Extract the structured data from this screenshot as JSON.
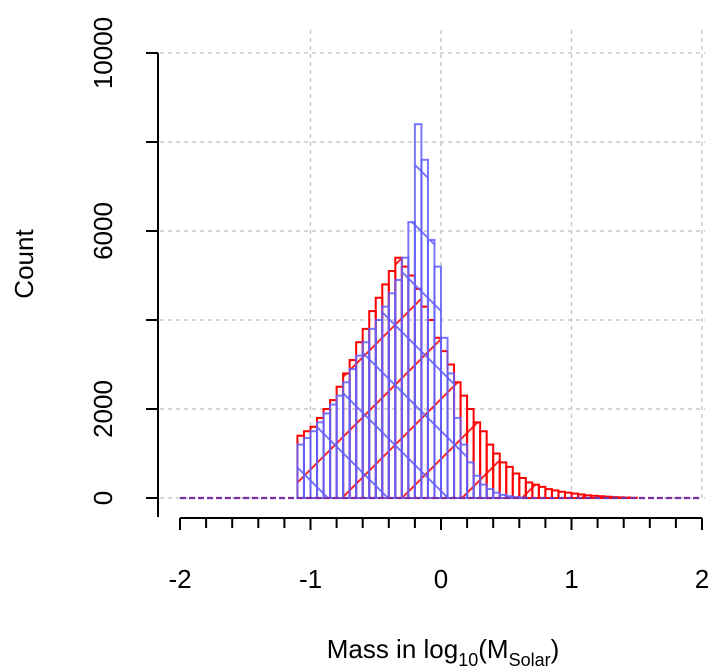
{
  "chart_data": {
    "type": "bar",
    "title": "",
    "xlabel_prefix": "Mass in log",
    "xlabel_sub1": "10",
    "xlabel_open": "(M",
    "xlabel_sub2": "Solar",
    "xlabel_close": ")",
    "ylabel": "Count",
    "xlim": [
      -2,
      2
    ],
    "ylim": [
      0,
      10000
    ],
    "grid": true,
    "xticks": [
      {
        "value": -2,
        "label": "-2"
      },
      {
        "value": -1,
        "label": "-1"
      },
      {
        "value": 0,
        "label": "0"
      },
      {
        "value": 1,
        "label": "1"
      },
      {
        "value": 2,
        "label": "2"
      }
    ],
    "yticks": [
      {
        "value": 0,
        "label": "0"
      },
      {
        "value": 2000,
        "label": "2000"
      },
      {
        "value": 6000,
        "label": "6000"
      },
      {
        "value": 10000,
        "label": "10000"
      }
    ],
    "bin_width": 0.05,
    "series": [
      {
        "color": "#ff0000",
        "bins": [
          {
            "x": -1.1,
            "y": 1400
          },
          {
            "x": -1.05,
            "y": 1500
          },
          {
            "x": -1.0,
            "y": 1600
          },
          {
            "x": -0.95,
            "y": 1800
          },
          {
            "x": -0.9,
            "y": 2000
          },
          {
            "x": -0.85,
            "y": 2200
          },
          {
            "x": -0.8,
            "y": 2500
          },
          {
            "x": -0.75,
            "y": 2800
          },
          {
            "x": -0.7,
            "y": 3100
          },
          {
            "x": -0.65,
            "y": 3500
          },
          {
            "x": -0.6,
            "y": 3800
          },
          {
            "x": -0.55,
            "y": 4200
          },
          {
            "x": -0.5,
            "y": 4500
          },
          {
            "x": -0.45,
            "y": 4800
          },
          {
            "x": -0.4,
            "y": 5100
          },
          {
            "x": -0.35,
            "y": 5400
          },
          {
            "x": -0.3,
            "y": 5200
          },
          {
            "x": -0.25,
            "y": 5000
          },
          {
            "x": -0.2,
            "y": 4700
          },
          {
            "x": -0.15,
            "y": 4300
          },
          {
            "x": -0.1,
            "y": 4000
          },
          {
            "x": -0.05,
            "y": 3600
          },
          {
            "x": 0.0,
            "y": 3300
          },
          {
            "x": 0.05,
            "y": 3000
          },
          {
            "x": 0.1,
            "y": 2600
          },
          {
            "x": 0.15,
            "y": 2300
          },
          {
            "x": 0.2,
            "y": 2000
          },
          {
            "x": 0.25,
            "y": 1700
          },
          {
            "x": 0.3,
            "y": 1500
          },
          {
            "x": 0.35,
            "y": 1200
          },
          {
            "x": 0.4,
            "y": 1000
          },
          {
            "x": 0.45,
            "y": 800
          },
          {
            "x": 0.5,
            "y": 700
          },
          {
            "x": 0.55,
            "y": 550
          },
          {
            "x": 0.6,
            "y": 450
          },
          {
            "x": 0.65,
            "y": 350
          },
          {
            "x": 0.7,
            "y": 300
          },
          {
            "x": 0.75,
            "y": 250
          },
          {
            "x": 0.8,
            "y": 200
          },
          {
            "x": 0.85,
            "y": 170
          },
          {
            "x": 0.9,
            "y": 140
          },
          {
            "x": 0.95,
            "y": 120
          },
          {
            "x": 1.0,
            "y": 100
          },
          {
            "x": 1.05,
            "y": 80
          },
          {
            "x": 1.1,
            "y": 60
          },
          {
            "x": 1.15,
            "y": 50
          },
          {
            "x": 1.2,
            "y": 40
          },
          {
            "x": 1.25,
            "y": 30
          },
          {
            "x": 1.3,
            "y": 20
          },
          {
            "x": 1.35,
            "y": 15
          },
          {
            "x": 1.4,
            "y": 10
          },
          {
            "x": 1.45,
            "y": 5
          }
        ]
      },
      {
        "color": "#6060ff",
        "bins": [
          {
            "x": -1.1,
            "y": 1200
          },
          {
            "x": -1.05,
            "y": 1350
          },
          {
            "x": -1.0,
            "y": 1500
          },
          {
            "x": -0.95,
            "y": 1700
          },
          {
            "x": -0.9,
            "y": 1900
          },
          {
            "x": -0.85,
            "y": 2100
          },
          {
            "x": -0.8,
            "y": 2300
          },
          {
            "x": -0.75,
            "y": 2600
          },
          {
            "x": -0.7,
            "y": 2900
          },
          {
            "x": -0.65,
            "y": 3200
          },
          {
            "x": -0.6,
            "y": 3500
          },
          {
            "x": -0.55,
            "y": 3800
          },
          {
            "x": -0.5,
            "y": 4000
          },
          {
            "x": -0.45,
            "y": 4300
          },
          {
            "x": -0.4,
            "y": 4600
          },
          {
            "x": -0.35,
            "y": 4900
          },
          {
            "x": -0.3,
            "y": 5400
          },
          {
            "x": -0.25,
            "y": 6200
          },
          {
            "x": -0.2,
            "y": 8400
          },
          {
            "x": -0.15,
            "y": 7600
          },
          {
            "x": -0.1,
            "y": 5800
          },
          {
            "x": -0.05,
            "y": 5200
          },
          {
            "x": 0.0,
            "y": 3600
          },
          {
            "x": 0.05,
            "y": 2800
          },
          {
            "x": 0.1,
            "y": 1800
          },
          {
            "x": 0.15,
            "y": 1200
          },
          {
            "x": 0.2,
            "y": 800
          },
          {
            "x": 0.25,
            "y": 500
          },
          {
            "x": 0.3,
            "y": 300
          },
          {
            "x": 0.35,
            "y": 200
          },
          {
            "x": 0.4,
            "y": 120
          },
          {
            "x": 0.45,
            "y": 70
          },
          {
            "x": 0.5,
            "y": 40
          },
          {
            "x": 0.55,
            "y": 20
          },
          {
            "x": 0.6,
            "y": 10
          }
        ]
      }
    ]
  }
}
